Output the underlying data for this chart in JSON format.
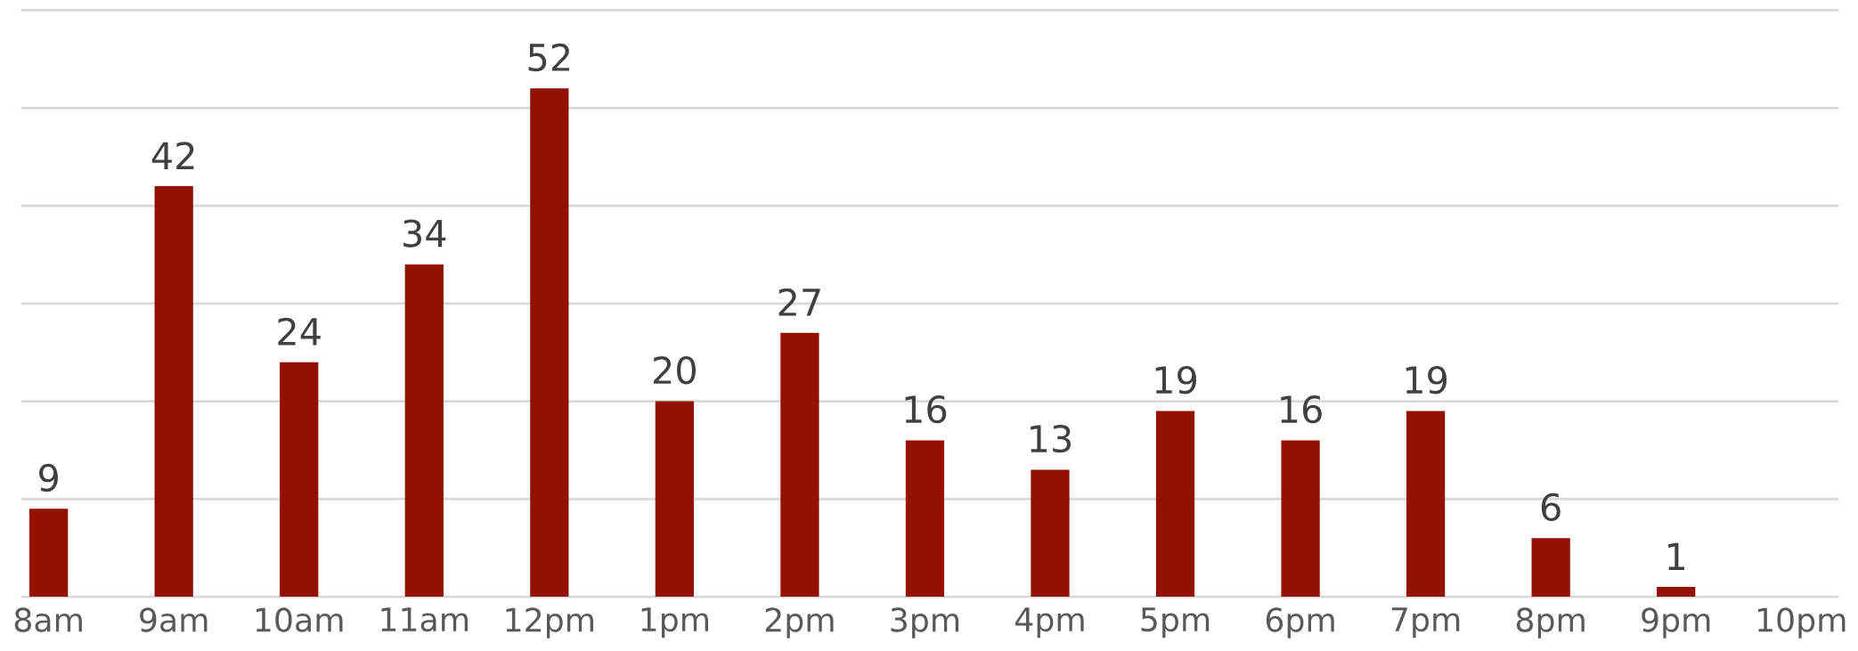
{
  "chart_data": {
    "type": "bar",
    "categories": [
      "8am",
      "9am",
      "10am",
      "11am",
      "12pm",
      "1pm",
      "2pm",
      "3pm",
      "4pm",
      "5pm",
      "6pm",
      "7pm",
      "8pm",
      "9pm",
      "10pm"
    ],
    "values": [
      9,
      42,
      24,
      34,
      52,
      20,
      27,
      16,
      13,
      19,
      16,
      19,
      6,
      1,
      null
    ],
    "color": "#921100",
    "data_labels": true,
    "ylim": [
      0,
      60
    ],
    "yticks": [
      {
        "value": 0,
        "label": null
      },
      {
        "value": 10,
        "label": null
      },
      {
        "value": 20,
        "label": null
      },
      {
        "value": 30,
        "label": null
      },
      {
        "value": 40,
        "label": null
      },
      {
        "value": 50,
        "label": null
      },
      {
        "value": 60,
        "label": null
      }
    ],
    "grid": "y",
    "tick_labels": "x"
  }
}
